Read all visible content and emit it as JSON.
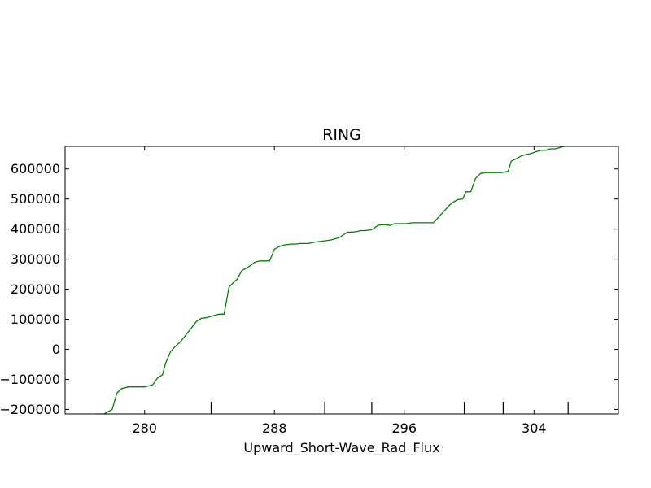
{
  "chart_data": {
    "type": "line",
    "title": "RING",
    "xlabel": "Upward_Short-Wave_Rad_Flux",
    "ylabel": "",
    "xlim": [
      275.1,
      309.2
    ],
    "ylim": [
      -215000,
      675000
    ],
    "x_ticks": [
      280,
      288,
      296,
      304
    ],
    "x_tick_labels": [
      "280",
      "288",
      "296",
      "304"
    ],
    "x_minor_ticks": [
      284.1,
      291.1,
      294,
      299.7,
      302.1,
      306.1
    ],
    "y_ticks": [
      -200000,
      -100000,
      0,
      100000,
      200000,
      300000,
      400000,
      500000,
      600000
    ],
    "y_tick_labels": [
      "−200000",
      "−100000",
      "0",
      "100000",
      "200000",
      "300000",
      "400000",
      "500000",
      "600000"
    ],
    "grid": false,
    "series": [
      {
        "color": "#008000",
        "x": [
          277.0,
          277.5,
          278.0,
          278.3,
          278.6,
          279.0,
          279.5,
          280.0,
          280.5,
          280.8,
          281.1,
          281.3,
          281.6,
          281.9,
          282.2,
          282.5,
          282.9,
          283.2,
          283.5,
          283.8,
          284.1,
          284.6,
          284.9,
          285.2,
          285.5,
          285.7,
          286.0,
          286.3,
          286.6,
          286.8,
          287.1,
          287.4,
          287.7,
          288.0,
          288.3,
          288.6,
          289.0,
          289.3,
          289.6,
          290.1,
          290.5,
          291.0,
          291.5,
          292.0,
          292.5,
          292.8,
          293.1,
          293.3,
          293.6,
          294.0,
          294.4,
          294.8,
          295.1,
          295.4,
          295.7,
          296.1,
          296.5,
          296.8,
          297.2,
          297.8,
          298.5,
          298.9,
          299.3,
          299.6,
          299.8,
          300.1,
          300.4,
          300.7,
          301.0,
          301.2,
          301.6,
          302.0,
          302.4,
          302.6,
          302.9,
          303.2,
          303.5,
          303.8,
          304.1,
          304.4,
          304.7,
          305.0,
          305.3,
          305.6,
          305.9
        ],
        "y": [
          -215000,
          -215000,
          -200000,
          -145000,
          -130000,
          -125000,
          -125000,
          -125000,
          -118000,
          -95000,
          -85000,
          -45000,
          -8000,
          10000,
          25000,
          45000,
          72000,
          93000,
          103000,
          105000,
          110000,
          117000,
          117000,
          207000,
          224000,
          233000,
          263000,
          270000,
          282000,
          290000,
          294000,
          294000,
          294000,
          333000,
          342000,
          347000,
          350000,
          350000,
          352000,
          352000,
          357000,
          360000,
          364000,
          372000,
          390000,
          390000,
          392000,
          395000,
          395000,
          398000,
          413000,
          415000,
          412000,
          418000,
          418000,
          418000,
          421000,
          421000,
          421000,
          421000,
          462000,
          486000,
          498000,
          500000,
          524000,
          524000,
          569000,
          585000,
          588000,
          588000,
          588000,
          588000,
          592000,
          626000,
          634000,
          643000,
          648000,
          651000,
          657000,
          662000,
          662000,
          667000,
          667000,
          671000,
          676000
        ]
      }
    ]
  }
}
